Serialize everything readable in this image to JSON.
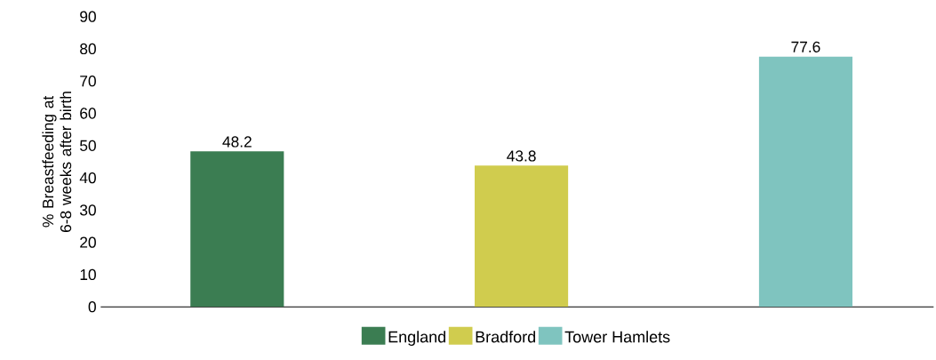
{
  "chart_data": {
    "type": "bar",
    "ylabel": "% Breastfeeding at 6-8 weeks after birth",
    "categories": [
      null,
      null,
      null
    ],
    "series": [
      {
        "name": "England",
        "color": "#3b7d52",
        "values": [
          48.2,
          null,
          null
        ]
      },
      {
        "name": "Bradford",
        "color": "#d0cc4e",
        "values": [
          null,
          43.8,
          null
        ]
      },
      {
        "name": "Tower Hamlets",
        "color": "#7fc4bf",
        "values": [
          null,
          null,
          77.6
        ]
      }
    ],
    "ylim": [
      0,
      90
    ],
    "yticks": [
      0,
      10,
      20,
      30,
      40,
      50,
      60,
      70,
      80,
      90
    ],
    "data_labels": true,
    "legend": "bottom"
  }
}
